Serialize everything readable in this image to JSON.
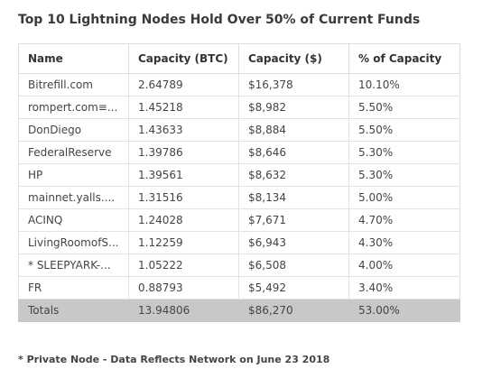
{
  "title": "Top 10 Lightning Nodes Hold Over 50% of Current Funds",
  "table": {
    "header": [
      "Name",
      "Capacity (BTC)",
      "Capacity ($)",
      "% of Capacity"
    ],
    "rows": [
      [
        "Bitrefill.com",
        "2.64789",
        "$16,378",
        "10.10%"
      ],
      [
        "rompert.com≡...",
        "1.45218",
        "$8,982",
        "5.50%"
      ],
      [
        "DonDiego",
        "1.43633",
        "$8,884",
        "5.50%"
      ],
      [
        "FederalReserve",
        "1.39786",
        "$8,646",
        "5.30%"
      ],
      [
        "HP",
        "1.39561",
        "$8,632",
        "5.30%"
      ],
      [
        "mainnet.yalls....",
        "1.31516",
        "$8,134",
        "5.00%"
      ],
      [
        "ACINQ",
        "1.24028",
        "$7,671",
        "4.70%"
      ],
      [
        "LivingRoomofS...",
        "1.12259",
        "$6,943",
        "4.30%"
      ],
      [
        "* SLEEPYARK-...",
        "1.05222",
        "$6,508",
        "4.00%"
      ],
      [
        "FR",
        "0.88793",
        "$5,492",
        "3.40%"
      ]
    ],
    "totals": [
      "Totals",
      "13.94806",
      "$86,270",
      "53.00%"
    ]
  },
  "footnote": "* Private Node - Data Reflects Network on June 23 2018"
}
